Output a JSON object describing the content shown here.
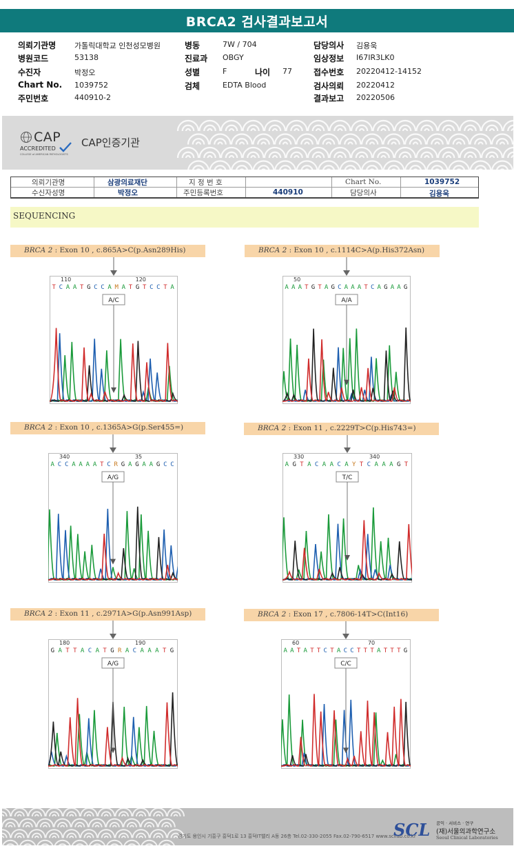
{
  "report": {
    "title": "BRCA2 검사결과보고서"
  },
  "patient_info": [
    {
      "label": "의뢰기관명",
      "value": "가톨릭대학교 인천성모병원"
    },
    {
      "label": "병원코드",
      "value": "53138"
    },
    {
      "label": "수진자",
      "value": "박정오"
    },
    {
      "label": "Chart No.",
      "value": "1039752"
    },
    {
      "label": "주민번호",
      "value": "440910-2"
    },
    {
      "label": "병동",
      "value": "7W / 704"
    },
    {
      "label": "진료과",
      "value": "OBGY"
    },
    {
      "label": "성별",
      "value": "F"
    },
    {
      "label": "나이",
      "value": "77"
    },
    {
      "label": "검체",
      "value": "EDTA Blood"
    },
    {
      "label": "담당의사",
      "value": "김용욱"
    },
    {
      "label": "임상정보",
      "value": "I67IR3LK0"
    },
    {
      "label": "접수번호",
      "value": "20220412-14152"
    },
    {
      "label": "검사의뢰",
      "value": "20220412"
    },
    {
      "label": "결과보고",
      "value": "20220506"
    }
  ],
  "cap": {
    "logo_text": "CAP",
    "accredited": "ACCREDITED",
    "college": "COLLEGE of AMERICAN PATHOLOGISTS",
    "cert_label": "CAP인증기관"
  },
  "id_table": {
    "row1": [
      "의뢰기관명",
      "삼광의료재단",
      "지 정 번 호",
      "",
      "Chart No.",
      "1039752"
    ],
    "row2": [
      "수신자성명",
      "박정오",
      "주민등록번호",
      "440910",
      "담당의사",
      "김용욱"
    ]
  },
  "section": {
    "title": "SEQUENCING"
  },
  "variants": [
    {
      "gene": "BRCA 2",
      "desc": " : Exon 10 , c.865A>C(p.Asn289His)",
      "genotype": "A/C",
      "pos1": "110",
      "pos2": "120",
      "seq": "TCAATGCCAMATGTCCTA"
    },
    {
      "gene": "BRCA 2",
      "desc": " : Exon 10 , c.1114C>A(p.His372Asn)",
      "genotype": "A/A",
      "pos1": "50",
      "pos2": "",
      "seq": "AAATGTAGCAAATCAGAAG"
    },
    {
      "gene": "BRCA 2",
      "desc": " : Exon 10 , c.1365A>G(p.Ser455=)",
      "genotype": "A/G",
      "pos1": "340",
      "pos2": "35",
      "seq": "ACCAAAATCRGAGAAGCC"
    },
    {
      "gene": "BRCA 2",
      "desc": " : Exon 11 , c.2229T>C(p.His743=)",
      "genotype": "T/C",
      "pos1": "330",
      "pos2": "340",
      "seq": "AGTACAACAYTCAAAGT"
    },
    {
      "gene": "BRCA 2",
      "desc": " : Exon 11 , c.2971A>G(p.Asn991Asp)",
      "genotype": "A/G",
      "pos1": "180",
      "pos2": "190",
      "seq": "GATTACATGRACAAATG"
    },
    {
      "gene": "BRCA 2",
      "desc": " : Exon 17 , c.7806-14T>C(Int16)",
      "genotype": "C/C",
      "pos1": "60",
      "pos2": "70",
      "seq": "AATATTCTACCTTTATTTG"
    }
  ],
  "footer": {
    "address": "경기도 용인시 기흥구 흥덕1로 13 흥덕IT밸리 A동 26층   Tel.02-330-2055   Fax.02-790-6517   www.scllab.co.kr",
    "logo": "SCL",
    "tagline": "공익 · 서비스 · 연구",
    "org_ko": "(재)서울의과학연구소",
    "org_en": "Seoul Clinical Laboratories"
  },
  "colors": {
    "title_bar": "#0f7a7c",
    "A": "#1a9a3a",
    "C": "#1e5fb0",
    "G": "#222222",
    "T": "#d02b2b"
  }
}
